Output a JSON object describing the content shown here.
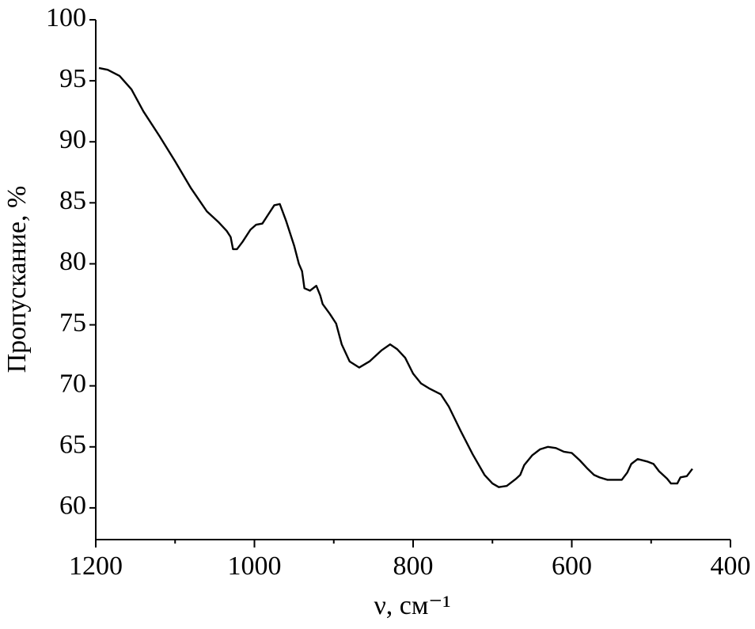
{
  "chart_data": {
    "type": "line",
    "xlabel": "ν, см⁻¹",
    "ylabel": "Пропускание, %",
    "xlim": [
      1200,
      400
    ],
    "ylim": [
      57.4,
      100
    ],
    "xticks": [
      1200,
      1000,
      800,
      600,
      400
    ],
    "xminorticks": [
      1100,
      900,
      700,
      500
    ],
    "yticks": [
      60,
      65,
      70,
      75,
      80,
      85,
      90,
      95,
      100
    ],
    "grid": false,
    "series": [
      {
        "color": "#000000",
        "x": [
          1196,
          1185,
          1170,
          1155,
          1140,
          1120,
          1100,
          1080,
          1060,
          1045,
          1035,
          1030,
          1027,
          1022,
          1015,
          1005,
          998,
          990,
          983,
          975,
          968,
          960,
          950,
          944,
          940,
          937,
          930,
          922,
          917,
          914,
          905,
          897,
          890,
          880,
          868,
          855,
          840,
          829,
          820,
          810,
          800,
          790,
          780,
          765,
          755,
          740,
          725,
          710,
          700,
          692,
          682,
          670,
          665,
          660,
          650,
          640,
          630,
          620,
          610,
          600,
          590,
          580,
          572,
          565,
          555,
          545,
          537,
          530,
          525,
          517,
          505,
          497,
          490,
          480,
          475,
          467,
          463,
          455,
          448
        ],
        "values": [
          96.05,
          95.9,
          95.4,
          94.3,
          92.5,
          90.5,
          88.4,
          86.2,
          84.3,
          83.4,
          82.7,
          82.2,
          81.2,
          81.2,
          81.8,
          82.8,
          83.2,
          83.3,
          84.0,
          84.8,
          84.9,
          83.5,
          81.5,
          80.0,
          79.4,
          78.0,
          77.8,
          78.2,
          77.4,
          76.7,
          75.9,
          75.1,
          73.4,
          72.0,
          71.5,
          72.0,
          72.9,
          73.4,
          73.0,
          72.3,
          71.0,
          70.2,
          69.8,
          69.3,
          68.3,
          66.3,
          64.4,
          62.7,
          62.0,
          61.7,
          61.8,
          62.4,
          62.7,
          63.5,
          64.3,
          64.8,
          65.0,
          64.9,
          64.6,
          64.5,
          63.9,
          63.2,
          62.7,
          62.5,
          62.3,
          62.3,
          62.3,
          62.9,
          63.6,
          64.0,
          63.8,
          63.6,
          63.0,
          62.4,
          62.0,
          62.0,
          62.5,
          62.6,
          63.2
        ]
      }
    ]
  }
}
